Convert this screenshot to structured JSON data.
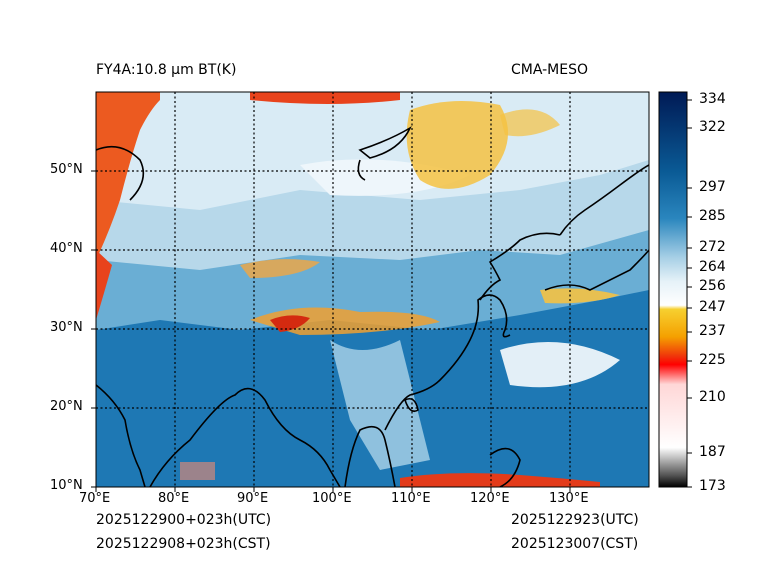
{
  "header": {
    "product_title": "FY4A:10.8 µm BT(K)",
    "source_label": "CMA-MESO"
  },
  "footer": {
    "init_utc": "2025122900+023h(UTC)",
    "init_cst": "2025122908+023h(CST)",
    "valid_utc": "2025122923(UTC)",
    "valid_cst": "2025123007(CST)"
  },
  "map": {
    "lon_range": [
      70,
      140
    ],
    "lat_range": [
      10,
      60
    ],
    "lon_labels": [
      "70°E",
      "80°E",
      "90°E",
      "100°E",
      "110°E",
      "120°E",
      "130°E"
    ],
    "lat_labels": [
      "10°N",
      "20°N",
      "30°N",
      "40°N",
      "50°N"
    ],
    "colors": {
      "warm_ocean": "#1e78b4",
      "land_mid": "#5fa6cf",
      "cold_cloud": "#d9ebf5",
      "high_cloud": "#f5c242",
      "very_cold": "#e8531e",
      "coast": "#000000"
    }
  },
  "colorbar": {
    "ticks": [
      "334",
      "322",
      "297",
      "285",
      "272",
      "264",
      "256",
      "247",
      "237",
      "225",
      "210",
      "187",
      "173"
    ],
    "range": [
      173,
      334
    ]
  }
}
